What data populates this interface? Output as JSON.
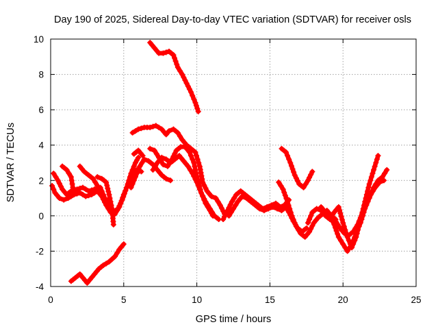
{
  "chart_data": {
    "type": "scatter",
    "title": "Day 190 of 2025, Sidereal Day-to-day VTEC variation (SDTVAR) for receiver osls",
    "xlabel": "GPS time / hours",
    "ylabel": "SDTVAR / TECUs",
    "xlim": [
      0,
      25
    ],
    "ylim": [
      -4,
      10
    ],
    "xticks": [
      "0",
      "5",
      "10",
      "15",
      "20",
      "25"
    ],
    "yticks": [
      "-4",
      "-2",
      "0",
      "2",
      "4",
      "6",
      "8",
      "10"
    ],
    "grid": true,
    "marker": "plus",
    "color": "#ff0000",
    "series": [
      {
        "name": "s1",
        "x": [
          1.4,
          1.7,
          2.0,
          2.2,
          2.5,
          2.7,
          3.0,
          3.3,
          3.6,
          4.0,
          4.4,
          4.7,
          5.0
        ],
        "y": [
          -3.7,
          -3.5,
          -3.3,
          -3.5,
          -3.8,
          -3.6,
          -3.3,
          -3.0,
          -2.8,
          -2.6,
          -2.3,
          -1.9,
          -1.6
        ]
      },
      {
        "name": "s2",
        "x": [
          6.8,
          7.1,
          7.4,
          7.7,
          8.1,
          8.4,
          8.7,
          9.0,
          9.3,
          9.6,
          9.9,
          10.1
        ],
        "y": [
          9.8,
          9.5,
          9.2,
          9.2,
          9.3,
          9.1,
          8.4,
          8.0,
          7.5,
          7.0,
          6.4,
          5.9
        ]
      },
      {
        "name": "s3",
        "x": [
          0.1,
          0.3,
          0.6,
          0.9,
          1.2,
          1.6,
          2.0,
          2.4,
          2.8,
          3.2,
          3.5,
          3.8,
          4.1,
          4.4,
          4.7,
          5.0,
          5.3,
          5.6,
          5.9,
          6.2
        ],
        "y": [
          1.7,
          1.3,
          1.0,
          0.9,
          1.0,
          1.2,
          1.3,
          1.1,
          1.2,
          1.4,
          1.1,
          0.6,
          0.2,
          0.1,
          0.5,
          1.2,
          1.8,
          2.3,
          2.6,
          2.5
        ]
      },
      {
        "name": "s4",
        "x": [
          0.2,
          0.5,
          0.8,
          1.1,
          1.4,
          1.8,
          2.2,
          2.6,
          3.0,
          3.4,
          3.7,
          4.0,
          4.3,
          4.6,
          4.9,
          5.2,
          5.5,
          5.8,
          6.0
        ],
        "y": [
          2.4,
          2.0,
          1.5,
          1.2,
          1.4,
          1.5,
          1.6,
          1.4,
          1.5,
          1.6,
          1.0,
          0.7,
          0.2,
          0.4,
          0.9,
          1.6,
          2.4,
          3.0,
          3.3
        ]
      },
      {
        "name": "s5",
        "x": [
          0.8,
          1.1,
          1.4,
          1.6
        ],
        "y": [
          2.8,
          2.6,
          2.2,
          1.2
        ]
      },
      {
        "name": "s6",
        "x": [
          2.0,
          2.3,
          2.6,
          2.9,
          3.2
        ],
        "y": [
          2.8,
          2.5,
          2.3,
          2.1,
          1.7
        ]
      },
      {
        "name": "s7",
        "x": [
          3.2,
          3.5,
          3.8,
          4.0,
          4.2,
          4.3
        ],
        "y": [
          2.2,
          2.1,
          1.9,
          1.2,
          0.4,
          -0.5
        ]
      },
      {
        "name": "s8",
        "x": [
          5.5,
          5.8,
          6.1,
          6.4,
          6.7,
          7.0,
          7.3,
          7.6,
          7.9,
          8.2
        ],
        "y": [
          1.6,
          2.2,
          2.8,
          3.2,
          3.1,
          2.9,
          2.6,
          2.3,
          2.1,
          2.0
        ]
      },
      {
        "name": "s9",
        "x": [
          5.7,
          6.0,
          6.3
        ],
        "y": [
          3.5,
          3.7,
          3.4
        ]
      },
      {
        "name": "s10",
        "x": [
          5.6,
          6.0,
          6.4,
          6.8,
          7.2,
          7.6,
          7.9,
          8.1,
          8.4,
          8.7,
          9.0,
          9.3,
          9.6,
          9.9,
          10.2,
          10.4,
          10.7,
          11.0,
          11.3,
          11.6,
          11.9
        ],
        "y": [
          4.7,
          4.9,
          5.0,
          5.0,
          5.1,
          4.9,
          4.6,
          4.8,
          4.9,
          4.7,
          4.3,
          4.0,
          3.8,
          3.6,
          2.8,
          1.9,
          1.4,
          1.1,
          1.0,
          0.6,
          0.1
        ]
      },
      {
        "name": "s11",
        "x": [
          6.8,
          7.1,
          7.4,
          7.7,
          8.0,
          8.3,
          8.6,
          8.9,
          9.2,
          9.5,
          9.8,
          10.0,
          10.3,
          10.6,
          10.9,
          11.1
        ],
        "y": [
          3.8,
          3.7,
          3.3,
          2.9,
          2.8,
          3.2,
          3.7,
          3.9,
          3.9,
          3.6,
          3.0,
          2.2,
          1.3,
          0.7,
          0.3,
          0.0
        ]
      },
      {
        "name": "s12",
        "x": [
          7.0,
          7.3,
          7.6,
          7.9,
          8.2,
          8.5,
          8.8,
          9.1,
          9.4,
          9.7,
          10.0,
          10.3,
          10.6,
          10.9,
          11.2,
          11.5
        ],
        "y": [
          2.6,
          3.0,
          3.3,
          3.2,
          3.0,
          3.2,
          3.4,
          3.1,
          2.8,
          2.4,
          1.9,
          1.3,
          0.8,
          0.4,
          0.0,
          -0.2
        ]
      },
      {
        "name": "s13",
        "x": [
          11.8,
          12.1,
          12.4,
          12.7,
          13.0,
          13.3,
          13.6,
          13.9,
          14.2,
          14.5,
          14.8,
          15.1,
          15.4,
          15.7,
          16.0,
          16.3
        ],
        "y": [
          -0.2,
          0.3,
          0.8,
          1.2,
          1.4,
          1.2,
          1.0,
          0.8,
          0.6,
          0.4,
          0.5,
          0.6,
          0.7,
          0.5,
          0.6,
          0.9
        ]
      },
      {
        "name": "s14",
        "x": [
          12.2,
          12.5,
          12.8,
          13.1,
          13.4,
          13.7,
          14.0,
          14.3,
          14.6,
          14.9,
          15.2,
          15.5,
          15.8,
          16.1
        ],
        "y": [
          0.0,
          0.4,
          0.8,
          1.1,
          1.0,
          0.8,
          0.6,
          0.4,
          0.3,
          0.4,
          0.5,
          0.4,
          0.3,
          0.5
        ]
      },
      {
        "name": "s15",
        "x": [
          15.6,
          15.9,
          16.2,
          16.5,
          16.8,
          17.1,
          17.4,
          17.7,
          18.0,
          18.3,
          18.6,
          18.9,
          19.2,
          19.5
        ],
        "y": [
          1.9,
          1.5,
          0.8,
          0.0,
          -0.6,
          -1.0,
          -1.2,
          -0.9,
          -0.4,
          -0.1,
          0.1,
          0.3,
          0.0,
          -0.2
        ]
      },
      {
        "name": "s16",
        "x": [
          16.0,
          16.3,
          16.6,
          16.9,
          17.2,
          17.5
        ],
        "y": [
          0.6,
          0.2,
          -0.3,
          -0.7,
          -0.9,
          -0.7
        ]
      },
      {
        "name": "s17",
        "x": [
          15.8,
          16.1,
          16.4,
          16.7,
          17.0,
          17.3,
          17.6,
          17.9
        ],
        "y": [
          3.8,
          3.6,
          3.0,
          2.3,
          1.8,
          1.6,
          2.0,
          2.5
        ]
      },
      {
        "name": "s18",
        "x": [
          17.6,
          17.9,
          18.2,
          18.5,
          18.8,
          19.1,
          19.4,
          19.7,
          20.0,
          20.3,
          20.6,
          20.9,
          21.2,
          21.5,
          21.8,
          22.1,
          22.4
        ],
        "y": [
          -0.4,
          0.2,
          0.4,
          0.3,
          0.0,
          -0.2,
          0.2,
          0.5,
          -0.4,
          -1.2,
          -1.8,
          -1.2,
          -0.2,
          0.8,
          1.8,
          2.6,
          3.4
        ]
      },
      {
        "name": "s19",
        "x": [
          18.5,
          18.8,
          19.1,
          19.4,
          19.7,
          20.0,
          20.3,
          20.6,
          20.9,
          21.2,
          21.5,
          21.8,
          22.1,
          22.4,
          22.7,
          23.0
        ],
        "y": [
          0.5,
          0.2,
          0.0,
          -0.5,
          -1.2,
          -1.6,
          -2.0,
          -1.6,
          -1.0,
          -0.4,
          0.4,
          1.0,
          1.6,
          2.0,
          2.2,
          2.6
        ]
      },
      {
        "name": "s20",
        "x": [
          19.2,
          19.5,
          19.8,
          20.1,
          20.4,
          20.7,
          21.0,
          21.3,
          21.6,
          21.9,
          22.2,
          22.5,
          22.8
        ],
        "y": [
          0.0,
          -0.3,
          -0.7,
          -1.0,
          -1.1,
          -0.9,
          -0.5,
          0.1,
          0.7,
          1.2,
          1.6,
          1.9,
          2.0
        ]
      }
    ]
  }
}
